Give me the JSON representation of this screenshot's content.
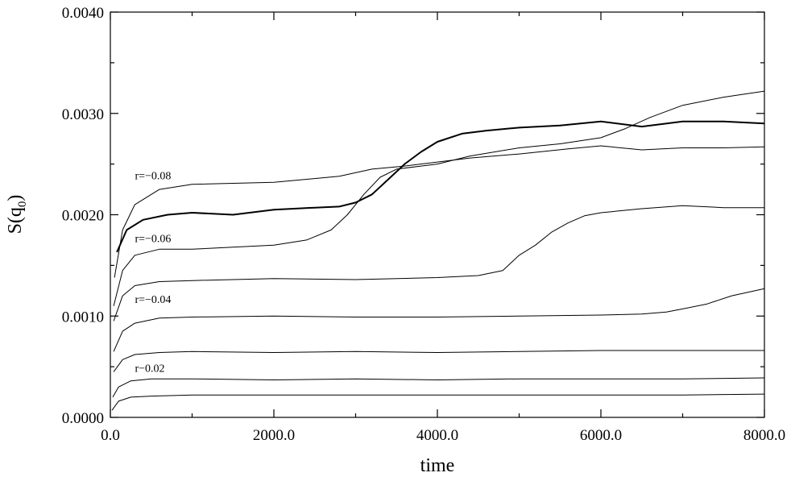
{
  "chart_data": {
    "type": "line",
    "title": "",
    "xlabel": "time",
    "ylabel_main": "S(q",
    "ylabel_sub": "0",
    "ylabel_close": ")",
    "xlim": [
      0,
      8000
    ],
    "ylim": [
      0,
      0.004
    ],
    "grid": false,
    "legend": "none",
    "x_ticks": [
      0,
      2000,
      4000,
      6000,
      8000
    ],
    "x_tick_labels": [
      "0.0",
      "2000.0",
      "4000.0",
      "6000.0",
      "8000.0"
    ],
    "y_ticks": [
      0,
      0.001,
      0.002,
      0.003,
      0.004
    ],
    "y_tick_labels": [
      "0.0000",
      "0.0010",
      "0.0020",
      "0.0030",
      "0.0040"
    ],
    "x_minor_step": 1000,
    "y_minor_step": 0.0005,
    "annotations": [
      {
        "text": "r=−0.08",
        "x": 300,
        "y": 0.00235
      },
      {
        "text": "r=−0.06",
        "x": 300,
        "y": 0.00173
      },
      {
        "text": "r=−0.04",
        "x": 300,
        "y": 0.00113
      },
      {
        "text": "r−0.02",
        "x": 300,
        "y": 0.00045
      }
    ],
    "series": [
      {
        "color": "#000000",
        "line_width": 1,
        "points": [
          [
            50,
            0.00138
          ],
          [
            150,
            0.00185
          ],
          [
            300,
            0.0021
          ],
          [
            600,
            0.00225
          ],
          [
            1000,
            0.0023
          ],
          [
            2000,
            0.00232
          ],
          [
            2800,
            0.00238
          ],
          [
            3200,
            0.00245
          ],
          [
            3600,
            0.00248
          ],
          [
            4000,
            0.00252
          ],
          [
            4400,
            0.00256
          ],
          [
            5000,
            0.0026
          ],
          [
            5600,
            0.00265
          ],
          [
            6000,
            0.00268
          ],
          [
            6500,
            0.00264
          ],
          [
            7000,
            0.00266
          ],
          [
            7500,
            0.00266
          ],
          [
            8000,
            0.00267
          ]
        ]
      },
      {
        "color": "#000000",
        "line_width": 2,
        "points": [
          [
            80,
            0.00163
          ],
          [
            200,
            0.00185
          ],
          [
            400,
            0.00195
          ],
          [
            700,
            0.002
          ],
          [
            1000,
            0.00202
          ],
          [
            1500,
            0.002
          ],
          [
            2000,
            0.00205
          ],
          [
            2500,
            0.00207
          ],
          [
            2800,
            0.00208
          ],
          [
            3000,
            0.00212
          ],
          [
            3200,
            0.0022
          ],
          [
            3400,
            0.00235
          ],
          [
            3600,
            0.0025
          ],
          [
            3800,
            0.00262
          ],
          [
            4000,
            0.00272
          ],
          [
            4300,
            0.0028
          ],
          [
            4600,
            0.00283
          ],
          [
            5000,
            0.00286
          ],
          [
            5500,
            0.00288
          ],
          [
            6000,
            0.00292
          ],
          [
            6500,
            0.00287
          ],
          [
            7000,
            0.00292
          ],
          [
            7500,
            0.00292
          ],
          [
            8000,
            0.0029
          ]
        ]
      },
      {
        "color": "#000000",
        "line_width": 1,
        "points": [
          [
            40,
            0.0011
          ],
          [
            150,
            0.00145
          ],
          [
            300,
            0.0016
          ],
          [
            600,
            0.00166
          ],
          [
            1000,
            0.00166
          ],
          [
            1500,
            0.00168
          ],
          [
            2000,
            0.0017
          ],
          [
            2400,
            0.00175
          ],
          [
            2700,
            0.00185
          ],
          [
            2900,
            0.002
          ],
          [
            3100,
            0.0022
          ],
          [
            3300,
            0.00237
          ],
          [
            3500,
            0.00245
          ],
          [
            3800,
            0.00248
          ],
          [
            4000,
            0.0025
          ],
          [
            4400,
            0.00258
          ],
          [
            5000,
            0.00266
          ],
          [
            5500,
            0.0027
          ],
          [
            6000,
            0.00276
          ],
          [
            6300,
            0.00285
          ],
          [
            6600,
            0.00296
          ],
          [
            7000,
            0.00308
          ],
          [
            7500,
            0.00316
          ],
          [
            8000,
            0.00322
          ]
        ]
      },
      {
        "color": "#000000",
        "line_width": 1,
        "points": [
          [
            40,
            0.00095
          ],
          [
            150,
            0.0012
          ],
          [
            300,
            0.0013
          ],
          [
            600,
            0.00134
          ],
          [
            1000,
            0.00135
          ],
          [
            2000,
            0.00137
          ],
          [
            3000,
            0.00136
          ],
          [
            4000,
            0.00138
          ],
          [
            4500,
            0.0014
          ],
          [
            4800,
            0.00145
          ],
          [
            5000,
            0.0016
          ],
          [
            5200,
            0.0017
          ],
          [
            5400,
            0.00183
          ],
          [
            5600,
            0.00192
          ],
          [
            5800,
            0.00199
          ],
          [
            6000,
            0.00202
          ],
          [
            6500,
            0.00206
          ],
          [
            7000,
            0.00209
          ],
          [
            7500,
            0.00207
          ],
          [
            8000,
            0.00207
          ]
        ]
      },
      {
        "color": "#000000",
        "line_width": 1,
        "points": [
          [
            40,
            0.00065
          ],
          [
            150,
            0.00085
          ],
          [
            300,
            0.00093
          ],
          [
            600,
            0.00098
          ],
          [
            1000,
            0.00099
          ],
          [
            2000,
            0.001
          ],
          [
            3000,
            0.00099
          ],
          [
            4000,
            0.00099
          ],
          [
            5000,
            0.001
          ],
          [
            6000,
            0.00101
          ],
          [
            6500,
            0.00102
          ],
          [
            6800,
            0.00104
          ],
          [
            7000,
            0.00107
          ],
          [
            7300,
            0.00112
          ],
          [
            7600,
            0.0012
          ],
          [
            8000,
            0.00127
          ]
        ]
      },
      {
        "color": "#000000",
        "line_width": 1,
        "points": [
          [
            40,
            0.00045
          ],
          [
            150,
            0.00057
          ],
          [
            300,
            0.00062
          ],
          [
            600,
            0.00064
          ],
          [
            1000,
            0.00065
          ],
          [
            2000,
            0.00064
          ],
          [
            3000,
            0.00065
          ],
          [
            4000,
            0.00064
          ],
          [
            5000,
            0.00065
          ],
          [
            6000,
            0.00066
          ],
          [
            7000,
            0.00066
          ],
          [
            8000,
            0.00066
          ]
        ]
      },
      {
        "color": "#000000",
        "line_width": 1,
        "points": [
          [
            30,
            0.0002
          ],
          [
            100,
            0.0003
          ],
          [
            250,
            0.00036
          ],
          [
            500,
            0.00038
          ],
          [
            1000,
            0.00038
          ],
          [
            2000,
            0.00037
          ],
          [
            3000,
            0.00038
          ],
          [
            4000,
            0.00037
          ],
          [
            5000,
            0.00038
          ],
          [
            6000,
            0.00038
          ],
          [
            7000,
            0.00038
          ],
          [
            8000,
            0.00039
          ]
        ]
      },
      {
        "color": "#000000",
        "line_width": 1,
        "points": [
          [
            20,
            7e-05
          ],
          [
            100,
            0.00016
          ],
          [
            250,
            0.0002
          ],
          [
            500,
            0.00021
          ],
          [
            1000,
            0.00022
          ],
          [
            2000,
            0.00022
          ],
          [
            3000,
            0.00022
          ],
          [
            4000,
            0.00022
          ],
          [
            5000,
            0.00022
          ],
          [
            6000,
            0.00022
          ],
          [
            7000,
            0.00022
          ],
          [
            8000,
            0.00023
          ]
        ]
      }
    ]
  }
}
